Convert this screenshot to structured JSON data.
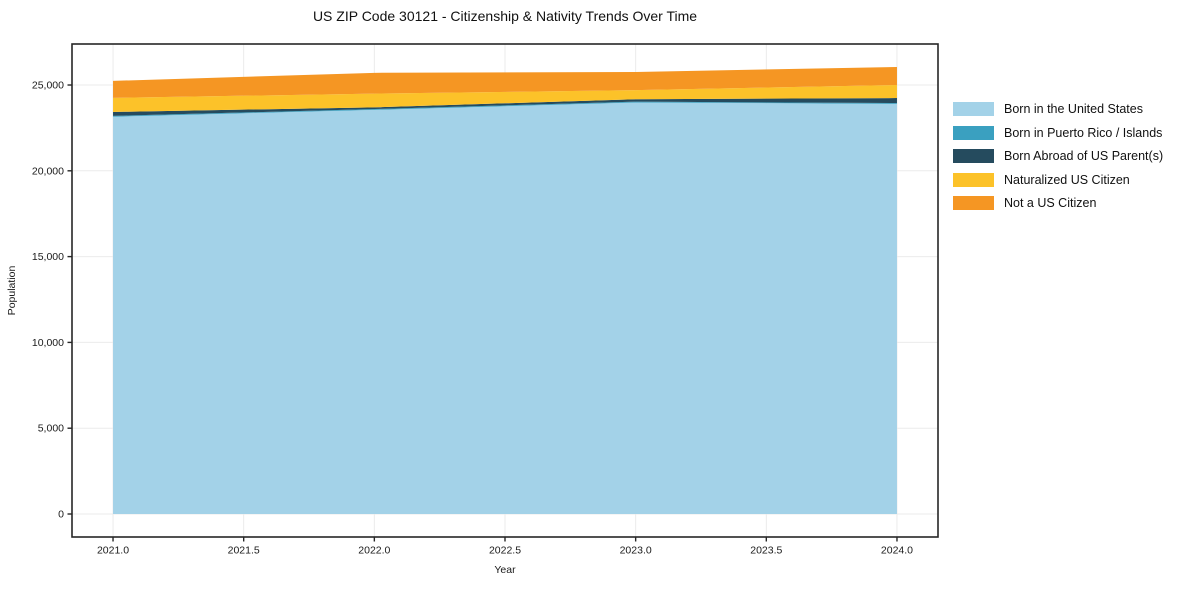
{
  "title": "US ZIP Code 30121 - Citizenship & Nativity Trends Over Time",
  "chart_data": {
    "type": "area",
    "stacked": true,
    "title": "US ZIP Code 30121 - Citizenship & Nativity Trends Over Time",
    "xlabel": "Year",
    "ylabel": "Population",
    "x": [
      2021,
      2022,
      2023,
      2024
    ],
    "series": [
      {
        "name": "Born in the United States",
        "color": "#A3D2E8",
        "values": [
          23150,
          23550,
          23980,
          23900
        ]
      },
      {
        "name": "Born in Puerto Rico / Islands",
        "color": "#3AA0C0",
        "values": [
          50,
          50,
          50,
          50
        ]
      },
      {
        "name": "Born Abroad of US Parent(s)",
        "color": "#254B5E",
        "values": [
          230,
          100,
          140,
          290
        ]
      },
      {
        "name": "Naturalized US Citizen",
        "color": "#FCC229",
        "values": [
          820,
          800,
          530,
          760
        ]
      },
      {
        "name": "Not a US Citizen",
        "color": "#F59623",
        "values": [
          990,
          1210,
          1060,
          1050
        ]
      }
    ],
    "x_ticks": [
      "2021.0",
      "2021.5",
      "2022.0",
      "2022.5",
      "2023.0",
      "2023.5",
      "2024.0"
    ],
    "x_tick_values": [
      2021,
      2021.5,
      2022,
      2022.5,
      2023,
      2023.5,
      2024
    ],
    "y_ticks": [
      "0",
      "5,000",
      "10,000",
      "15,000",
      "20,000",
      "25,000"
    ],
    "y_tick_values": [
      0,
      5000,
      10000,
      15000,
      20000,
      25000
    ],
    "xlim": [
      2020.843,
      2024.157
    ],
    "ylim": [
      -1340,
      27390
    ],
    "grid": true,
    "grid_color": "#ebebeb",
    "spine_color": "#262626",
    "legend_position": "right"
  }
}
